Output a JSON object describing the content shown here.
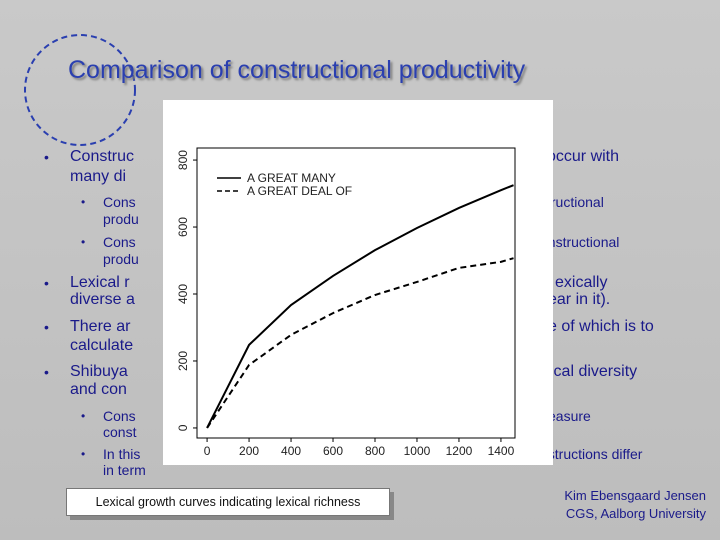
{
  "slide": {
    "title": "Comparison of constructional productivity",
    "lines": [
      {
        "left": "Construc",
        "right": "occur with"
      },
      {
        "left": "many di"
      },
      {
        "left": "Cons",
        "right": "tructional"
      },
      {
        "left": "produ"
      },
      {
        "left": "Cons",
        "right": "onstructional"
      },
      {
        "left": "produ"
      },
      {
        "left": "Lexical r",
        "right": "exically"
      },
      {
        "left": "diverse a",
        "right": "ear in it)."
      },
      {
        "left": "There ar",
        "right": "e of which is to"
      },
      {
        "left": "calculate"
      },
      {
        "left": "Shibuya",
        "right": "xical diversity"
      },
      {
        "left": "and con"
      },
      {
        "left": "Cons",
        "right": "easure"
      },
      {
        "left": "const"
      },
      {
        "left": "In this",
        "right": "nstructions differ"
      },
      {
        "left": "in term"
      }
    ],
    "caption": "Lexical growth curves indicating lexical richness",
    "footer": [
      "Kim Ebensgaard Jensen",
      "CGS, Aalborg University"
    ]
  },
  "chart_data": {
    "type": "line",
    "x": [
      0,
      200,
      400,
      600,
      800,
      1000,
      1200,
      1400,
      1460
    ],
    "series": [
      {
        "name": "A GREAT MANY",
        "color": "#000000",
        "dash": "solid",
        "values": [
          0,
          248,
          367,
          454,
          531,
          597,
          657,
          710,
          725
        ]
      },
      {
        "name": "A GREAT DEAL OF",
        "color": "#000000",
        "dash": "dashed",
        "values": [
          0,
          188,
          278,
          343,
          397,
          436,
          478,
          496,
          507
        ]
      }
    ],
    "xlim": [
      -48,
      1467
    ],
    "ylim": [
      -30,
      836
    ],
    "xticks": [
      0,
      200,
      400,
      600,
      800,
      1000,
      1200,
      1400
    ],
    "yticks": [
      0,
      200,
      400,
      600,
      800
    ],
    "legend": "top-left"
  }
}
